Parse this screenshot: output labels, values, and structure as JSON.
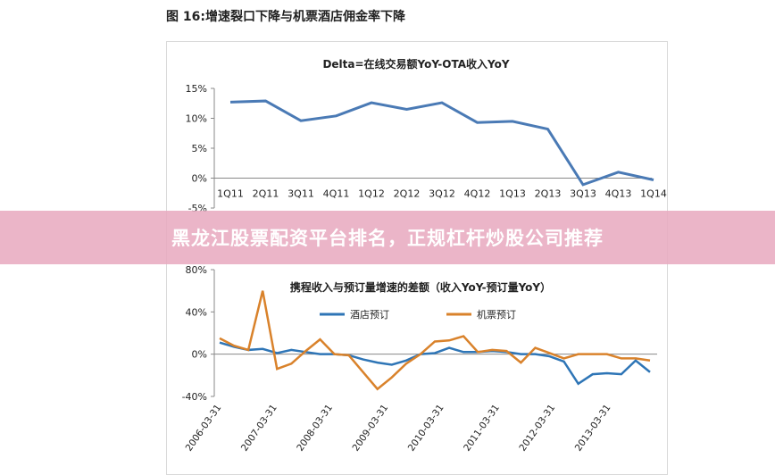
{
  "figure_caption": "图 16:增速裂口下降与机票酒店佣金率下降",
  "banner": {
    "text": "黑龙江股票配资平台排名，正规杠杆炒股公司推荐"
  },
  "colors": {
    "blue": "#4a7ab5",
    "orange": "#d9822b",
    "series_blue": "#2e75b6",
    "axis": "#888888"
  },
  "chart_data": [
    {
      "type": "line",
      "title": "Delta=在线交易额YoY-OTA收入YoY",
      "categories": [
        "1Q11",
        "2Q11",
        "3Q11",
        "4Q11",
        "1Q12",
        "2Q12",
        "3Q12",
        "4Q12",
        "1Q13",
        "2Q13",
        "3Q13",
        "4Q13",
        "1Q14"
      ],
      "series": [
        {
          "values": [
            12.7,
            12.9,
            9.6,
            10.4,
            12.6,
            11.5,
            12.6,
            9.3,
            9.5,
            8.2,
            -1.1,
            1.0,
            -0.3
          ]
        }
      ],
      "yticks": [
        "15%",
        "10%",
        "5%",
        "0%",
        "-5%"
      ],
      "ylim": [
        -5,
        15
      ]
    },
    {
      "type": "line",
      "title": "携程收入与预订量增速的差额（收入YoY-预订量YoY）",
      "legend": [
        "酒店预订",
        "机票预订"
      ],
      "x_labels": [
        "2006-03-31",
        "2007-03-31",
        "2008-03-31",
        "2009-03-31",
        "2010-03-31",
        "2011-03-31",
        "2012-03-31",
        "2013-03-31"
      ],
      "series": [
        {
          "name": "酒店预订",
          "values": [
            11,
            7,
            4,
            5,
            1,
            4,
            2,
            0,
            0,
            -1,
            -5,
            -8,
            -10,
            -6,
            0,
            1,
            6,
            2,
            2,
            3,
            2,
            0,
            0,
            -2,
            -7,
            -28,
            -19,
            -18,
            -19,
            -6,
            -17
          ]
        },
        {
          "name": "机票预订",
          "values": [
            15,
            8,
            4,
            60,
            -14,
            -9,
            3,
            14,
            0,
            -1,
            -17,
            -33,
            -22,
            -9,
            0,
            12,
            13,
            17,
            2,
            4,
            3,
            -8,
            6,
            1,
            -4,
            0,
            0,
            0,
            -4,
            -4,
            -6
          ]
        }
      ],
      "yticks": [
        "80%",
        "40%",
        "0%",
        "-40%"
      ],
      "ylim": [
        -40,
        80
      ]
    }
  ]
}
